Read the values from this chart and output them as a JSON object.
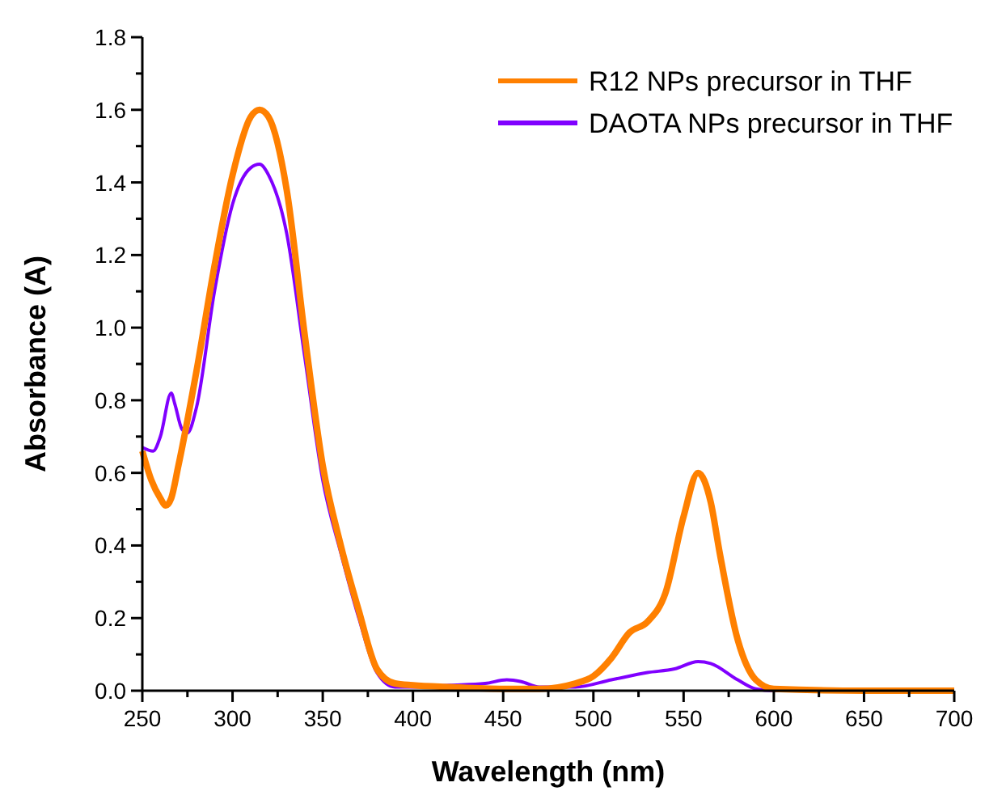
{
  "chart_data": {
    "type": "line",
    "xlabel": "Wavelength (nm)",
    "ylabel": "Absorbance (A)",
    "xlim": [
      250,
      700
    ],
    "ylim": [
      0,
      1.8
    ],
    "xticks": [
      250,
      {
        "value": 275,
        "label": null
      },
      300,
      {
        "value": 325,
        "label": null
      },
      350,
      {
        "value": 375,
        "label": null
      },
      400,
      {
        "value": 425,
        "label": null
      },
      450,
      {
        "value": 475,
        "label": null
      },
      500,
      {
        "value": 525,
        "label": null
      },
      550,
      {
        "value": 575,
        "label": null
      },
      600,
      {
        "value": 625,
        "label": null
      },
      650,
      {
        "value": 675,
        "label": null
      },
      700
    ],
    "yticks": [
      {
        "value": 0,
        "label": "0.0"
      },
      {
        "value": 0.1,
        "label": null
      },
      {
        "value": 0.2,
        "label": "0.2"
      },
      {
        "value": 0.3,
        "label": null
      },
      {
        "value": 0.4,
        "label": "0.4"
      },
      {
        "value": 0.5,
        "label": null
      },
      {
        "value": 0.6,
        "label": "0.6"
      },
      {
        "value": 0.7,
        "label": null
      },
      {
        "value": 0.8,
        "label": "0.8"
      },
      {
        "value": 0.9,
        "label": null
      },
      {
        "value": 1,
        "label": "1.0"
      },
      {
        "value": 1.1,
        "label": null
      },
      {
        "value": 1.2,
        "label": "1.2"
      },
      {
        "value": 1.3,
        "label": null
      },
      {
        "value": 1.4,
        "label": "1.4"
      },
      {
        "value": 1.5,
        "label": null
      },
      {
        "value": 1.6,
        "label": "1.6"
      },
      {
        "value": 1.7,
        "label": null
      },
      {
        "value": 1.8,
        "label": "1.8"
      }
    ],
    "grid": false,
    "legend": "top right",
    "marker": "none",
    "line_style": "solid",
    "series": [
      {
        "name": "R12 NPs precursor in THF",
        "color": "#ff8000",
        "x": [
          250,
          255,
          260,
          263,
          266,
          270,
          280,
          290,
          300,
          310,
          315,
          320,
          330,
          340,
          350,
          360,
          370,
          380,
          390,
          400,
          420,
          450,
          470,
          490,
          500,
          510,
          520,
          530,
          540,
          550,
          558,
          565,
          570,
          580,
          590,
          600,
          650,
          700
        ],
        "values": [
          0.66,
          0.58,
          0.53,
          0.51,
          0.53,
          0.62,
          0.88,
          1.17,
          1.42,
          1.58,
          1.6,
          1.58,
          1.38,
          0.98,
          0.62,
          0.4,
          0.22,
          0.06,
          0.02,
          0.015,
          0.01,
          0.005,
          0.005,
          0.02,
          0.04,
          0.09,
          0.16,
          0.19,
          0.27,
          0.48,
          0.6,
          0.52,
          0.38,
          0.14,
          0.03,
          0.005,
          0,
          0
        ]
      },
      {
        "name": "DAOTA NPs precursor in THF",
        "color": "#8000ff",
        "x": [
          250,
          256,
          260,
          266,
          268,
          272,
          275,
          280,
          290,
          300,
          310,
          315,
          320,
          330,
          340,
          350,
          360,
          370,
          380,
          390,
          400,
          420,
          440,
          452,
          460,
          470,
          490,
          510,
          530,
          545,
          558,
          565,
          580,
          590,
          600,
          700
        ],
        "values": [
          0.67,
          0.66,
          0.7,
          0.82,
          0.79,
          0.72,
          0.71,
          0.78,
          1.1,
          1.34,
          1.44,
          1.45,
          1.42,
          1.26,
          0.92,
          0.58,
          0.38,
          0.2,
          0.05,
          0.01,
          0.01,
          0.015,
          0.02,
          0.03,
          0.025,
          0.01,
          0.01,
          0.03,
          0.05,
          0.06,
          0.08,
          0.075,
          0.03,
          0.005,
          0,
          0
        ]
      }
    ]
  }
}
